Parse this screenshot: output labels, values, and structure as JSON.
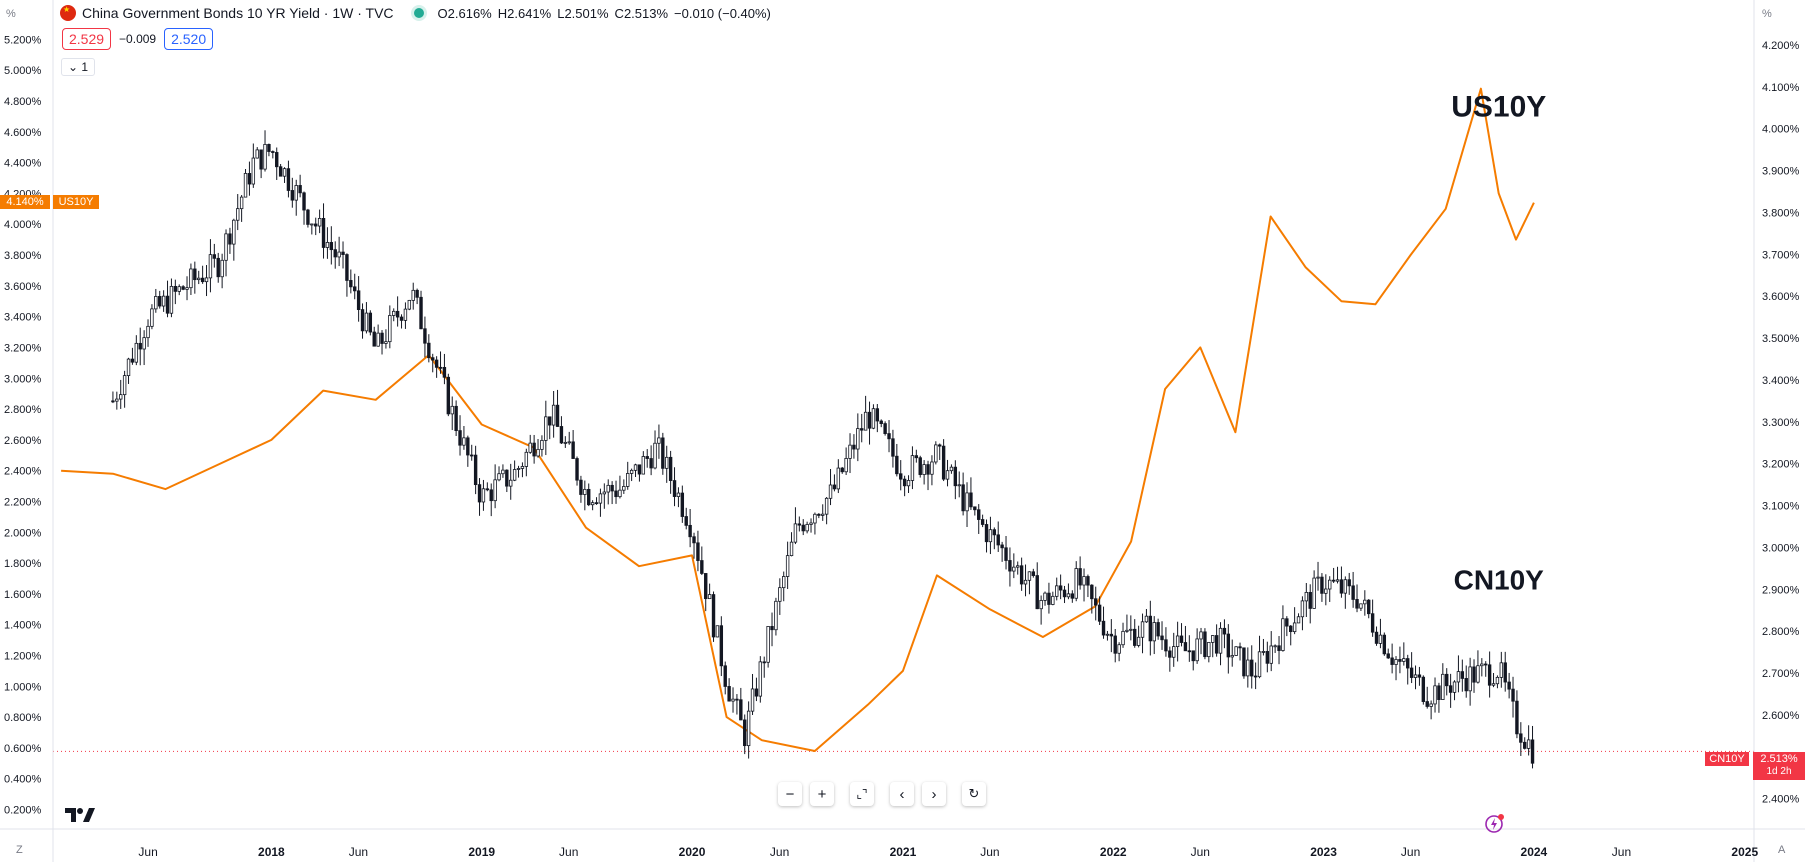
{
  "header": {
    "title": "China Government Bonds 10 YR Yield · 1W · TVC",
    "ohlc": [
      {
        "key": "O",
        "value": "2.616%"
      },
      {
        "key": "H",
        "value": "2.641%"
      },
      {
        "key": "L",
        "value": "2.501%"
      },
      {
        "key": "C",
        "value": "2.513%"
      }
    ],
    "change": "−0.010 (−0.40%)",
    "bid": "2.529",
    "spread": "−0.009",
    "ask": "2.520",
    "collapse_label": "1"
  },
  "axes": {
    "left_unit": "%",
    "right_unit": "%",
    "left_ticks": [
      "5.200%",
      "5.000%",
      "4.800%",
      "4.600%",
      "4.400%",
      "4.200%",
      "4.000%",
      "3.800%",
      "3.600%",
      "3.400%",
      "3.200%",
      "3.000%",
      "2.800%",
      "2.600%",
      "2.400%",
      "2.200%",
      "2.000%",
      "1.800%",
      "1.600%",
      "1.400%",
      "1.200%",
      "1.000%",
      "0.800%",
      "0.600%",
      "0.400%",
      "0.200%"
    ],
    "right_ticks": [
      "4.200%",
      "4.100%",
      "4.000%",
      "3.900%",
      "3.800%",
      "3.700%",
      "3.600%",
      "3.500%",
      "3.400%",
      "3.300%",
      "3.200%",
      "3.100%",
      "3.000%",
      "2.900%",
      "2.800%",
      "2.700%",
      "2.600%",
      "2.400%"
    ],
    "time_ticks": [
      {
        "label": "Jun",
        "major": false
      },
      {
        "label": "2018",
        "major": true
      },
      {
        "label": "Jun",
        "major": false
      },
      {
        "label": "2019",
        "major": true
      },
      {
        "label": "Jun",
        "major": false
      },
      {
        "label": "2020",
        "major": true
      },
      {
        "label": "Jun",
        "major": false
      },
      {
        "label": "2021",
        "major": true
      },
      {
        "label": "Jun",
        "major": false
      },
      {
        "label": "2022",
        "major": true
      },
      {
        "label": "Jun",
        "major": false
      },
      {
        "label": "2023",
        "major": true
      },
      {
        "label": "Jun",
        "major": false
      },
      {
        "label": "2024",
        "major": true
      },
      {
        "label": "Jun",
        "major": false
      },
      {
        "label": "2025",
        "major": true
      }
    ]
  },
  "tags": {
    "us_price": "4.140%",
    "us_name": "US10Y",
    "cn_name": "CN10Y",
    "cn_price": "2.513%",
    "cn_countdown": "1d 2h"
  },
  "annotations": {
    "us": "US10Y",
    "cn": "CN10Y"
  },
  "colors": {
    "us_line": "#f57c00",
    "cn_candle": "#131722",
    "price_line": "#f23645",
    "grid": "#f0f3fa"
  },
  "icons": [
    "tradingview-logo-icon",
    "zoom-out-icon",
    "zoom-in-icon",
    "reset-scale-icon",
    "scroll-left-icon",
    "scroll-right-icon",
    "refresh-icon",
    "lightning-icon"
  ],
  "corner": {
    "left": "Z",
    "right": "A"
  },
  "chart_data": [
    {
      "type": "candlestick",
      "title": "China Government Bonds 10 YR Yield · 1W · TVC",
      "series_name": "CN10Y",
      "axis": "right",
      "ylim": [
        2.33,
        4.25
      ],
      "x": [
        "2017-04",
        "2017-06",
        "2017-08",
        "2017-10",
        "2017-12",
        "2018-01",
        "2018-03",
        "2018-05",
        "2018-07",
        "2018-09",
        "2018-11",
        "2019-01",
        "2019-03",
        "2019-05",
        "2019-07",
        "2019-09",
        "2019-11",
        "2020-01",
        "2020-03",
        "2020-04",
        "2020-05",
        "2020-07",
        "2020-09",
        "2020-11",
        "2021-01",
        "2021-03",
        "2021-05",
        "2021-07",
        "2021-09",
        "2021-11",
        "2022-01",
        "2022-03",
        "2022-05",
        "2022-07",
        "2022-09",
        "2022-11",
        "2023-01",
        "2023-03",
        "2023-05",
        "2023-07",
        "2023-09",
        "2023-11",
        "2023-12",
        "2024-01"
      ],
      "close": [
        3.35,
        3.55,
        3.62,
        3.68,
        3.92,
        3.95,
        3.81,
        3.68,
        3.47,
        3.61,
        3.36,
        3.12,
        3.18,
        3.32,
        3.13,
        3.14,
        3.24,
        3.05,
        2.68,
        2.55,
        2.72,
        3.05,
        3.13,
        3.32,
        3.18,
        3.22,
        3.08,
        2.98,
        2.87,
        2.92,
        2.78,
        2.81,
        2.75,
        2.78,
        2.7,
        2.82,
        2.92,
        2.88,
        2.74,
        2.65,
        2.69,
        2.71,
        2.58,
        2.513
      ]
    },
    {
      "type": "line",
      "series_name": "US10Y",
      "axis": "left",
      "ylim": [
        0.08,
        5.3
      ],
      "x": [
        "2017-01",
        "2017-04",
        "2017-07",
        "2017-10",
        "2018-01",
        "2018-04",
        "2018-07",
        "2018-10",
        "2019-01",
        "2019-04",
        "2019-07",
        "2019-10",
        "2020-01",
        "2020-03",
        "2020-05",
        "2020-08",
        "2020-11",
        "2021-01",
        "2021-03",
        "2021-06",
        "2021-09",
        "2021-12",
        "2022-02",
        "2022-04",
        "2022-06",
        "2022-08",
        "2022-10",
        "2022-12",
        "2023-02",
        "2023-04",
        "2023-06",
        "2023-08",
        "2023-10",
        "2023-11",
        "2023-12",
        "2024-01"
      ],
      "values": [
        2.4,
        2.38,
        2.28,
        2.44,
        2.6,
        2.92,
        2.86,
        3.15,
        2.7,
        2.55,
        2.03,
        1.78,
        1.85,
        0.8,
        0.65,
        0.58,
        0.88,
        1.1,
        1.72,
        1.5,
        1.32,
        1.52,
        1.94,
        2.93,
        3.2,
        2.65,
        4.05,
        3.72,
        3.5,
        3.48,
        3.8,
        4.1,
        4.88,
        4.2,
        3.9,
        4.14
      ]
    }
  ]
}
